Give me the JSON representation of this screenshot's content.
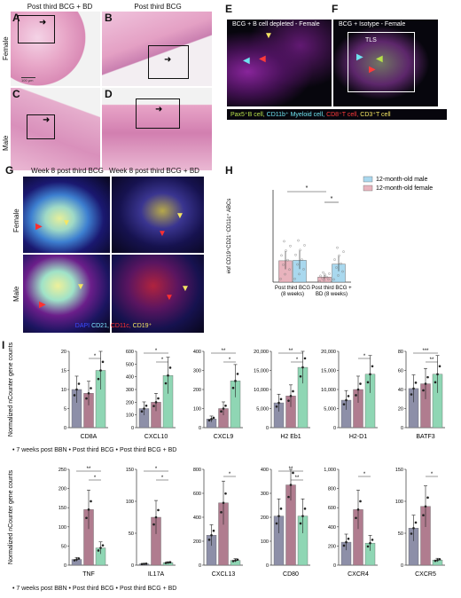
{
  "panels": {
    "A": {
      "label": "A",
      "title": "Post third BCG + BD",
      "scale": "100 µm"
    },
    "B": {
      "label": "B",
      "title": "Post third BCG"
    },
    "C": {
      "label": "C"
    },
    "D": {
      "label": "D"
    },
    "E": {
      "label": "E",
      "title": "BCG + B cell depleted - Female"
    },
    "F": {
      "label": "F",
      "title": "BCG + Isotype - Female",
      "tls": "TLS"
    },
    "G": {
      "label": "G",
      "col1": "Week 8 post third BCG",
      "col2": "Week 8 post third BCG + BD",
      "row1": "Female",
      "row2": "Male"
    },
    "H": {
      "label": "H"
    },
    "I": {
      "label": "I"
    }
  },
  "row_labels": {
    "female": "Female",
    "male": "Male"
  },
  "ef_legend": {
    "items": [
      {
        "text": "Pax5⁺B cell,",
        "color": "#b6e04a"
      },
      {
        "text": "CD11b⁺ Myeloid cell,",
        "color": "#6fe3f0"
      },
      {
        "text": "CD8⁺T cell,",
        "color": "#ff3a3a"
      },
      {
        "text": "CD3⁺T cell",
        "color": "#f5e663"
      }
    ]
  },
  "g_legend": {
    "items": [
      {
        "text": "DAPI",
        "color": "#3b4bff"
      },
      {
        "text": "CD21,",
        "color": "#7fe7ff"
      },
      {
        "text": "CD11c,",
        "color": "#ff3030"
      },
      {
        "text": "CD19⁺",
        "color": "#f5e663"
      }
    ]
  },
  "colors": {
    "gray": "#8d8fa8",
    "mauve": "#b07c8f",
    "green": "#8fd6b4",
    "blue": "#a9d8ee",
    "pink": "#e8b3bd"
  },
  "i_legend": {
    "items": [
      "7 weeks post BBN",
      "Post third BCG",
      "Post third BCG + BD"
    ],
    "text": "• 7 weeks post BBN • Post third BCG • Post third BCG + BD"
  },
  "chart_data": [
    {
      "panel": "H",
      "type": "bar",
      "ylabel": "#of CD19⁺CD21⁻CD11c⁺ ABCs",
      "categories": [
        "Post third BCG (8 weeks)",
        "Post third BCG + BD (8 weeks)"
      ],
      "category_lines": [
        [
          "Post third BCG",
          "(8 weeks)"
        ],
        [
          "Post third BCG +",
          "BD (8 weeks)"
        ]
      ],
      "series": [
        {
          "name": "12-month-old male",
          "color": "#a9d8ee",
          "values": [
            260,
            215
          ]
        },
        {
          "name": "12-month-old female",
          "color": "#e8b3bd",
          "values": [
            255,
            60
          ]
        }
      ],
      "ylim": [
        0,
        1100
      ],
      "significance": [
        "*",
        "*"
      ]
    },
    {
      "panel": "I-top",
      "type": "bar",
      "ylabel": "Normalized nCounter gene counts",
      "series_names": [
        "7 weeks post BBN",
        "Post third BCG",
        "Post third BCG + BD"
      ],
      "genes": [
        {
          "name": "CD8A",
          "values": [
            10,
            9,
            15
          ],
          "yticks": [
            0,
            5,
            10,
            15,
            20
          ],
          "ymax": 20,
          "sig": [
            "*"
          ]
        },
        {
          "name": "CXCL10",
          "values": [
            150,
            200,
            410
          ],
          "yticks": [
            0,
            100,
            200,
            300,
            400,
            500,
            600
          ],
          "ymax": 600,
          "sig": [
            "*",
            "*"
          ]
        },
        {
          "name": "CXCL9",
          "values": [
            45,
            100,
            245
          ],
          "yticks": [
            0,
            100,
            200,
            300,
            400
          ],
          "ymax": 400,
          "sig": [
            "**",
            "*"
          ]
        },
        {
          "name": "H2 Eb1",
          "values": [
            6500,
            8300,
            15800
          ],
          "yticks": [
            0,
            5000,
            10000,
            15000,
            20000
          ],
          "ytick_labels": [
            "0",
            "5,000",
            "10,000",
            "15,000",
            "20,000"
          ],
          "ymax": 20000,
          "sig": [
            "**",
            "*"
          ]
        },
        {
          "name": "H2-D1",
          "values": [
            7200,
            10000,
            14000
          ],
          "yticks": [
            0,
            5000,
            10000,
            15000,
            20000
          ],
          "ytick_labels": [
            "0",
            "5,000",
            "10,000",
            "15,000",
            "20,000"
          ],
          "ymax": 20000,
          "sig": [
            "*"
          ]
        },
        {
          "name": "BATF3",
          "values": [
            41,
            46,
            56
          ],
          "yticks": [
            0,
            20,
            40,
            60,
            80
          ],
          "ymax": 80,
          "sig": [
            "***",
            "**"
          ]
        }
      ]
    },
    {
      "panel": "I-bottom",
      "type": "bar",
      "ylabel": "Normalized nCounter gene counts",
      "series_names": [
        "7 weeks post BBN",
        "Post third BCG",
        "Post third BCG + BD"
      ],
      "genes": [
        {
          "name": "TNF",
          "values": [
            15,
            145,
            45
          ],
          "yticks": [
            0,
            50,
            100,
            150,
            200,
            250
          ],
          "ymax": 250,
          "sig": [
            "**",
            "*"
          ]
        },
        {
          "name": "IL17A",
          "values": [
            2,
            75,
            4
          ],
          "yticks": [
            0,
            50,
            100,
            150
          ],
          "ymax": 150,
          "sig": [
            "*",
            "*"
          ]
        },
        {
          "name": "CXCL13",
          "values": [
            250,
            520,
            40
          ],
          "yticks": [
            0,
            200,
            400,
            600,
            800
          ],
          "ymax": 800,
          "sig": [
            "*"
          ]
        },
        {
          "name": "CD80",
          "values": [
            205,
            335,
            205
          ],
          "yticks": [
            0,
            100,
            200,
            300,
            400
          ],
          "ymax": 400,
          "sig": [
            "**",
            "**"
          ]
        },
        {
          "name": "CXCR4",
          "values": [
            240,
            580,
            230
          ],
          "yticks": [
            0,
            200,
            400,
            600,
            800,
            1000
          ],
          "ymax": 1000,
          "sig": [
            "*"
          ]
        },
        {
          "name": "CXCR5",
          "values": [
            58,
            92,
            8
          ],
          "yticks": [
            0,
            50,
            100,
            150
          ],
          "ymax": 150,
          "sig": [
            "*"
          ]
        }
      ]
    }
  ]
}
